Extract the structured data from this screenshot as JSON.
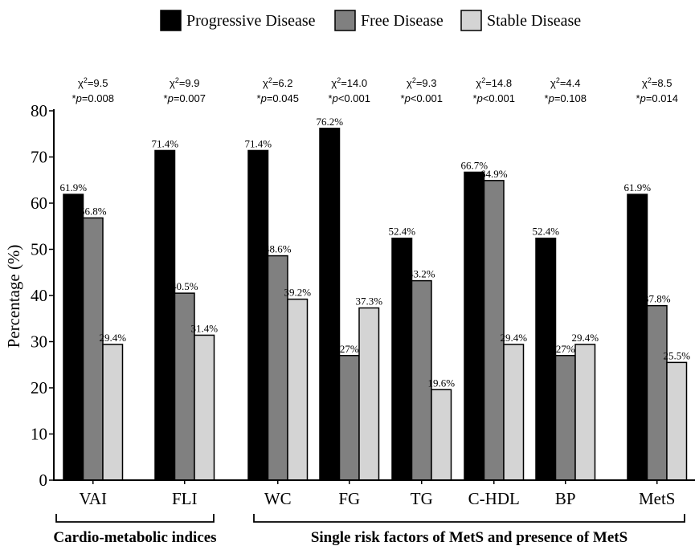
{
  "chart_data": {
    "type": "bar",
    "ylabel": "Percentage (%)",
    "ylim": [
      0,
      80
    ],
    "yticks": [
      0,
      10,
      20,
      30,
      40,
      50,
      60,
      70,
      80
    ],
    "legend_position": "top",
    "categories": [
      "VAI",
      "FLI",
      "WC",
      "FG",
      "TG",
      "C-HDL",
      "BP",
      "MetS"
    ],
    "series": [
      {
        "name": "Progressive Disease",
        "color": "#000000",
        "values": [
          61.9,
          71.4,
          71.4,
          76.2,
          52.4,
          66.7,
          52.4,
          61.9
        ],
        "labels": [
          "61.9%",
          "71.4%",
          "71.4%",
          "76.2%",
          "52.4%",
          "66.7%",
          "52.4%",
          "61.9%"
        ]
      },
      {
        "name": "Free Disease",
        "color": "#808080",
        "values": [
          56.8,
          40.5,
          48.6,
          27,
          43.2,
          64.9,
          27,
          37.8
        ],
        "labels": [
          "56.8%",
          "40.5%",
          "48.6%",
          "27%",
          "43.2%",
          "64.9%",
          "27%",
          "37.8%"
        ]
      },
      {
        "name": "Stable Disease",
        "color": "#d4d4d4",
        "values": [
          29.4,
          31.4,
          39.2,
          37.3,
          19.6,
          29.4,
          29.4,
          25.5
        ],
        "labels": [
          "29.4%",
          "31.4%",
          "39.2%",
          "37.3%",
          "19.6%",
          "29.4%",
          "29.4%",
          "25.5%"
        ]
      }
    ],
    "stats": [
      {
        "chi2": "9.5",
        "p": "=0.008"
      },
      {
        "chi2": "9.9",
        "p": "=0.007"
      },
      {
        "chi2": "6.2",
        "p": "=0.045"
      },
      {
        "chi2": "14.0",
        "p": "<0.001"
      },
      {
        "chi2": "9.3",
        "p": "<0.001"
      },
      {
        "chi2": "14.8",
        "p": "<0.001"
      },
      {
        "chi2": "4.4",
        "p": "=0.108"
      },
      {
        "chi2": "8.5",
        "p": "=0.014"
      }
    ],
    "groups": [
      {
        "label": "Cardio-metabolic indices",
        "categories": [
          "VAI",
          "FLI"
        ]
      },
      {
        "label": "Single risk factors of MetS and presence of MetS",
        "categories": [
          "WC",
          "FG",
          "TG",
          "C-HDL",
          "BP",
          "MetS"
        ]
      }
    ]
  }
}
